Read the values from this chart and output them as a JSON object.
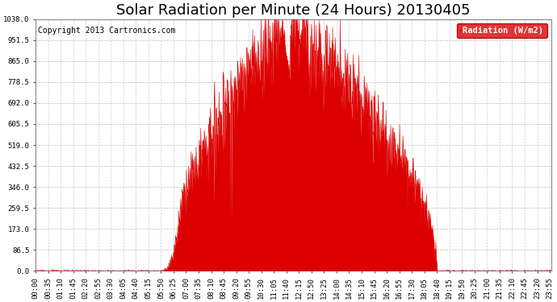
{
  "title": "Solar Radiation per Minute (24 Hours) 20130405",
  "copyright_text": "Copyright 2013 Cartronics.com",
  "legend_label": "Radiation (W/m2)",
  "legend_bg": "#dd0000",
  "legend_text_color": "#ffffff",
  "background_color": "#ffffff",
  "plot_bg_color": "#ffffff",
  "bar_color": "#dd0000",
  "grid_color": "#aaaaaa",
  "ylim": [
    0.0,
    1038.0
  ],
  "yticks": [
    0.0,
    86.5,
    173.0,
    259.5,
    346.0,
    432.5,
    519.0,
    605.5,
    692.0,
    778.5,
    865.0,
    951.5,
    1038.0
  ],
  "title_fontsize": 13,
  "copyright_fontsize": 7,
  "tick_fontsize": 6.5,
  "total_minutes": 1440,
  "sunrise_minute": 348,
  "sunset_minute": 1120,
  "peak_minute": 700,
  "peak_value": 1038.0,
  "xtick_interval": 35
}
